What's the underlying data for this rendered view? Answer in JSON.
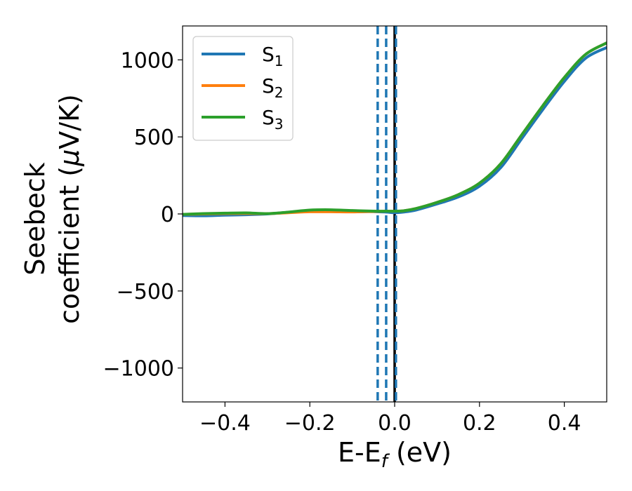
{
  "chart_data": {
    "type": "line",
    "xlabel": "E-E",
    "xlabel_sub": "f",
    "xlabel_unit": " (eV)",
    "ylabel_line1": "Seebeck",
    "ylabel_line2_pre": "coefficient  (",
    "ylabel_mu": "μ",
    "ylabel_line2_post": "V/K)",
    "xlim": [
      -0.5,
      0.5
    ],
    "ylim": [
      -1220,
      1220
    ],
    "xticks": [
      -0.4,
      -0.2,
      0.0,
      0.2,
      0.4
    ],
    "xtick_labels": [
      "−0.4",
      "−0.2",
      "0.0",
      "0.2",
      "0.4"
    ],
    "yticks": [
      -1000,
      -500,
      0,
      500,
      1000
    ],
    "ytick_labels": [
      "−1000",
      "−500",
      "0",
      "500",
      "1000"
    ],
    "grid": false,
    "legend_position": "top-left",
    "series": [
      {
        "name": "S",
        "sub": "1",
        "color": "#1f77b4",
        "x": [
          -0.5,
          -0.45,
          -0.4,
          -0.35,
          -0.3,
          -0.25,
          -0.2,
          -0.15,
          -0.1,
          -0.05,
          -0.02,
          0.0,
          0.02,
          0.05,
          0.1,
          0.15,
          0.2,
          0.25,
          0.3,
          0.35,
          0.4,
          0.45,
          0.5
        ],
        "y": [
          -10,
          -12,
          -8,
          -5,
          0,
          10,
          18,
          18,
          15,
          15,
          12,
          8,
          12,
          25,
          65,
          110,
          180,
          300,
          490,
          680,
          860,
          1010,
          1080
        ]
      },
      {
        "name": "S",
        "sub": "2",
        "color": "#ff7f0e",
        "x": [
          -0.5,
          -0.45,
          -0.4,
          -0.35,
          -0.3,
          -0.25,
          -0.2,
          -0.15,
          -0.1,
          -0.05,
          -0.02,
          0.0,
          0.02,
          0.05,
          0.1,
          0.15,
          0.2,
          0.25,
          0.3,
          0.35,
          0.4,
          0.45,
          0.5
        ],
        "y": [
          -3,
          0,
          2,
          3,
          2,
          8,
          14,
          14,
          13,
          16,
          18,
          18,
          20,
          35,
          75,
          125,
          200,
          325,
          515,
          705,
          885,
          1035,
          1110
        ]
      },
      {
        "name": "S",
        "sub": "3",
        "color": "#2ca02c",
        "x": [
          -0.5,
          -0.45,
          -0.4,
          -0.35,
          -0.3,
          -0.25,
          -0.2,
          -0.15,
          -0.1,
          -0.05,
          -0.02,
          0.0,
          0.02,
          0.05,
          0.1,
          0.15,
          0.2,
          0.25,
          0.3,
          0.35,
          0.4,
          0.45,
          0.5
        ],
        "y": [
          -3,
          2,
          5,
          7,
          2,
          12,
          25,
          27,
          22,
          18,
          18,
          18,
          20,
          35,
          75,
          125,
          200,
          325,
          515,
          705,
          885,
          1035,
          1110
        ]
      }
    ],
    "vlines": [
      {
        "x": -0.04,
        "style": "dashed",
        "color": "#1f77b4"
      },
      {
        "x": -0.02,
        "style": "dashed",
        "color": "#1f77b4"
      },
      {
        "x": 0.0,
        "style": "solid",
        "color": "#000000"
      },
      {
        "x": 0.003,
        "style": "dashed",
        "color": "#1f77b4"
      }
    ]
  }
}
